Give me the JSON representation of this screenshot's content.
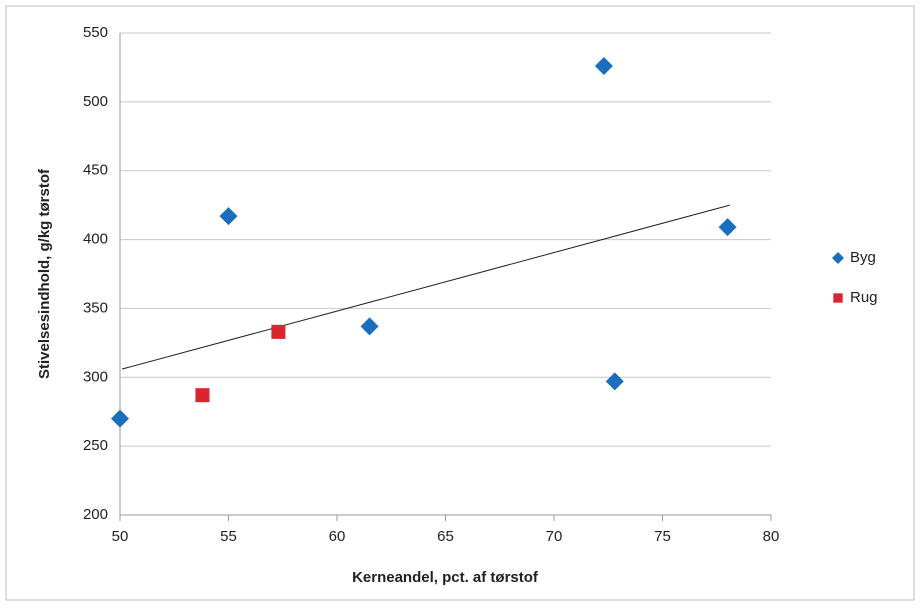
{
  "chart_data": {
    "type": "scatter",
    "x_label": "Kerneandel, pct. af tørstof",
    "y_label": "Stivelsesindhold, g/kg tørstof",
    "xlim": [
      50,
      80
    ],
    "xticks": [
      50,
      55,
      60,
      65,
      70,
      75,
      80
    ],
    "ylim": [
      200,
      550
    ],
    "yticks": [
      200,
      250,
      300,
      350,
      400,
      450,
      500,
      550
    ],
    "grid": true,
    "legend": "right",
    "series": [
      {
        "name": "Byg",
        "color": "#1a6ebd",
        "marker": "diamond",
        "x": [
          50,
          55,
          61.5,
          72.3,
          72.8,
          78
        ],
        "values": [
          270,
          417,
          337,
          526,
          297,
          409
        ]
      },
      {
        "name": "Rug",
        "color": "#d9262e",
        "marker": "square",
        "x": [
          53.8,
          57.3
        ],
        "values": [
          287,
          333
        ]
      }
    ],
    "trendline": {
      "color": "#222222",
      "x": [
        50.1,
        78.1
      ],
      "y": [
        306,
        425
      ]
    }
  }
}
